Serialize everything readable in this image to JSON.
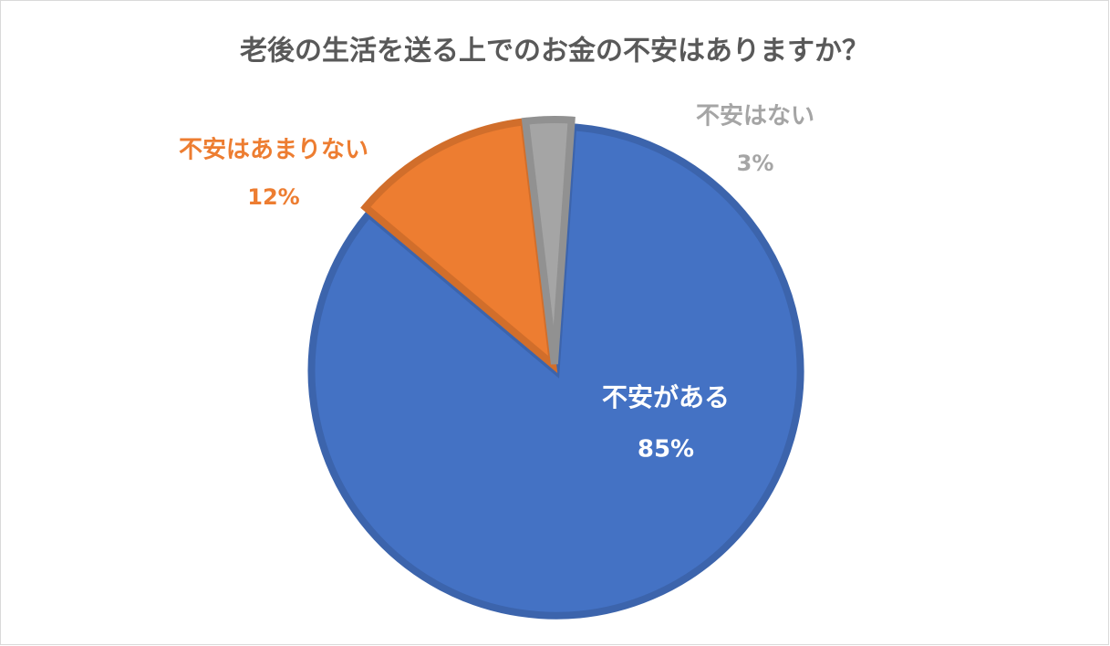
{
  "chart_data": {
    "type": "pie",
    "title": "老後の生活を送る上でのお金の不安はありますか？",
    "categories": [
      "不安がある",
      "不安はあまりない",
      "不安はない"
    ],
    "values": [
      85,
      12,
      3
    ],
    "value_labels": [
      "85%",
      "12%",
      "3%"
    ],
    "colors": [
      "#4472c4",
      "#ed7d31",
      "#a5a5a5"
    ]
  }
}
